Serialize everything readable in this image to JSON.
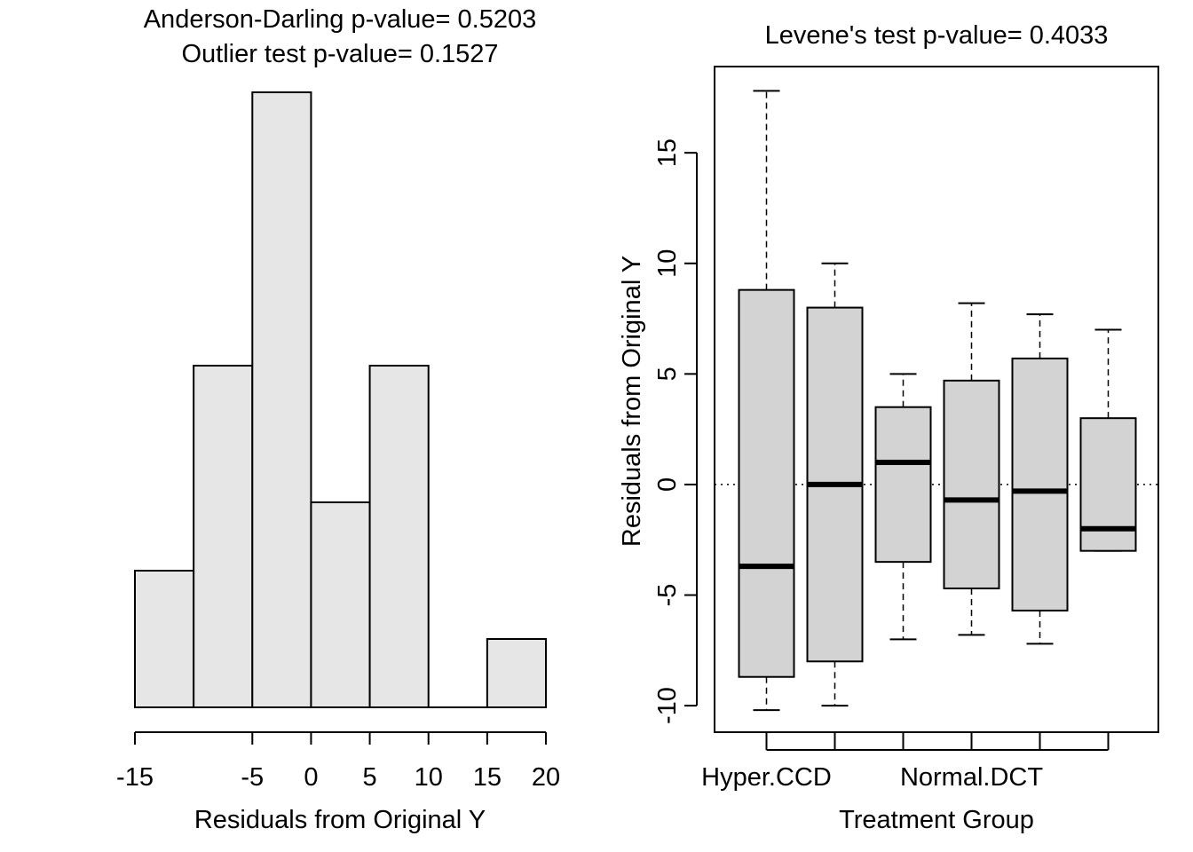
{
  "chart_data": [
    {
      "type": "bar",
      "subtype": "histogram",
      "title_lines": [
        "Anderson-Darling p-value= 0.5203",
        "Outlier test p-value= 0.1527"
      ],
      "xlabel": "Residuals from Original Y",
      "ylabel": "",
      "bins": [
        {
          "from": -15,
          "to": -10,
          "count": 2
        },
        {
          "from": -10,
          "to": -5,
          "count": 5
        },
        {
          "from": -5,
          "to": 0,
          "count": 9
        },
        {
          "from": 0,
          "to": 5,
          "count": 3
        },
        {
          "from": 5,
          "to": 10,
          "count": 5
        },
        {
          "from": 10,
          "to": 15,
          "count": 0
        },
        {
          "from": 15,
          "to": 20,
          "count": 1
        }
      ],
      "xticks": [
        "-15",
        "-5",
        "0",
        "5",
        "10",
        "15",
        "20"
      ],
      "xtick_values": [
        -15,
        -5,
        0,
        5,
        10,
        15,
        20
      ],
      "xlim": [
        -15,
        20
      ],
      "ylim": [
        0,
        9
      ],
      "bar_color": "#e6e6e6"
    },
    {
      "type": "box",
      "title": "Levene's test p-value= 0.4033",
      "xlabel": "Treatment Group",
      "ylabel": "Residuals from Original Y",
      "visible_category_labels": [
        "Hyper.CCD",
        "",
        "",
        "Normal.DCT",
        "",
        ""
      ],
      "yticks": [
        "-10",
        "-5",
        "0",
        "5",
        "10",
        "15"
      ],
      "ytick_values": [
        -10,
        -5,
        0,
        5,
        10,
        15
      ],
      "ylim": [
        -11.2,
        18.9
      ],
      "reference_line": 0,
      "box_color": "#d3d3d3",
      "boxes": [
        {
          "whisker_low": -10.2,
          "q1": -8.7,
          "median": -3.7,
          "q3": 8.8,
          "whisker_high": 17.8
        },
        {
          "whisker_low": -10.0,
          "q1": -8.0,
          "median": 0.0,
          "q3": 8.0,
          "whisker_high": 10.0
        },
        {
          "whisker_low": -7.0,
          "q1": -3.5,
          "median": 1.0,
          "q3": 3.5,
          "whisker_high": 5.0
        },
        {
          "whisker_low": -6.8,
          "q1": -4.7,
          "median": -0.7,
          "q3": 4.7,
          "whisker_high": 8.2
        },
        {
          "whisker_low": -7.2,
          "q1": -5.7,
          "median": -0.3,
          "q3": 5.7,
          "whisker_high": 7.7
        },
        {
          "whisker_low": -3.0,
          "q1": -3.0,
          "median": -2.0,
          "q3": 3.0,
          "whisker_high": 7.0
        }
      ]
    }
  ]
}
